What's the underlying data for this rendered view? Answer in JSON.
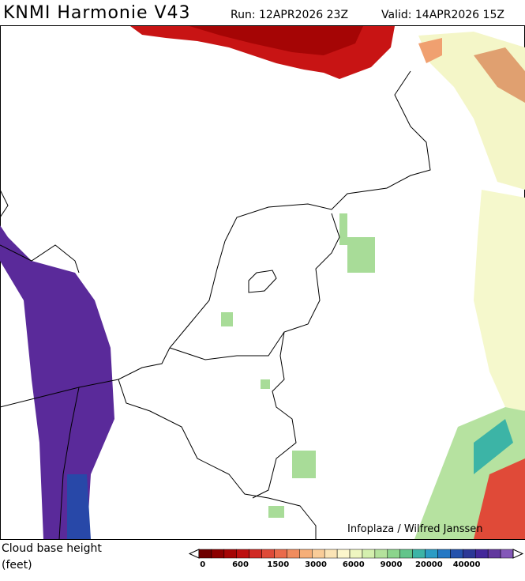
{
  "header": {
    "title": "KNMI Harmonie V43",
    "run": "Run: 12APR2026 23Z",
    "valid": "Valid: 14APR2026 15Z"
  },
  "credit": "Infoplaza / Wilfred Janssen",
  "legend": {
    "title": "Cloud base height",
    "unit": "(feet)",
    "labels": [
      "0",
      "600",
      "1500",
      "3000",
      "6000",
      "9000",
      "20000",
      "40000"
    ],
    "colors": [
      "#6e0000",
      "#8c0000",
      "#a50505",
      "#bd1010",
      "#d02a24",
      "#de4a38",
      "#ea6a4a",
      "#f08c5e",
      "#f5ae78",
      "#f9cc98",
      "#fbe4b6",
      "#fcf6cc",
      "#eef6c0",
      "#d4efae",
      "#b4e29c",
      "#8cd48c",
      "#62c48a",
      "#3cb4a6",
      "#2c9cc4",
      "#2478c4",
      "#2452ac",
      "#2c3896",
      "#44289a",
      "#62389e",
      "#8458b8"
    ]
  }
}
